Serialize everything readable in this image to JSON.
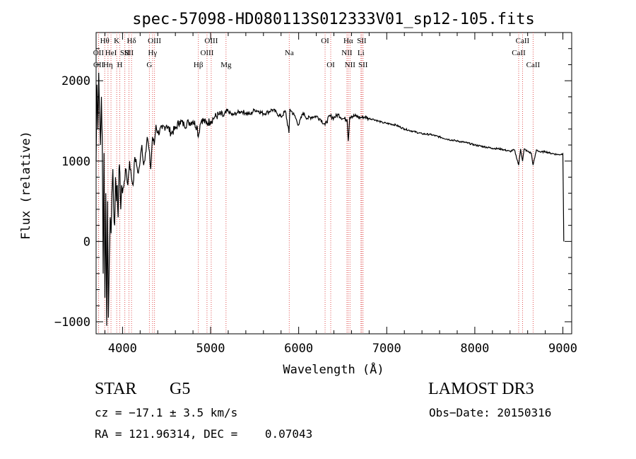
{
  "chart_data": {
    "type": "line",
    "title": "spec-57098-HD080113S012333V01_sp12-105.fits",
    "xlabel": "Wavelength (Å)",
    "ylabel": "Flux (relative)",
    "xlim": [
      3700,
      9100
    ],
    "ylim": [
      -1150,
      2600
    ],
    "xticks": [
      4000,
      5000,
      6000,
      7000,
      8000,
      9000
    ],
    "yticks": [
      -1000,
      0,
      1000,
      2000
    ],
    "grid": false,
    "series": [
      {
        "name": "flux",
        "x": [
          3700,
          3710,
          3720,
          3730,
          3740,
          3750,
          3760,
          3770,
          3780,
          3790,
          3800,
          3810,
          3820,
          3830,
          3840,
          3850,
          3860,
          3870,
          3880,
          3890,
          3900,
          3910,
          3920,
          3930,
          3940,
          3950,
          3960,
          3970,
          3980,
          3990,
          4000,
          4020,
          4040,
          4060,
          4080,
          4100,
          4120,
          4140,
          4160,
          4180,
          4200,
          4220,
          4240,
          4260,
          4280,
          4300,
          4320,
          4340,
          4360,
          4380,
          4400,
          4450,
          4500,
          4550,
          4600,
          4650,
          4700,
          4750,
          4800,
          4850,
          4860,
          4880,
          4900,
          4950,
          5000,
          5050,
          5100,
          5150,
          5200,
          5250,
          5300,
          5350,
          5400,
          5450,
          5500,
          5550,
          5600,
          5650,
          5700,
          5750,
          5800,
          5850,
          5890,
          5900,
          5950,
          6000,
          6050,
          6100,
          6150,
          6200,
          6250,
          6300,
          6350,
          6400,
          6450,
          6500,
          6550,
          6563,
          6580,
          6600,
          6650,
          6700,
          6750,
          6800,
          6850,
          6900,
          6950,
          7000,
          7100,
          7200,
          7300,
          7400,
          7500,
          7600,
          7700,
          7800,
          7900,
          8000,
          8100,
          8200,
          8300,
          8400,
          8450,
          8498,
          8520,
          8542,
          8560,
          8600,
          8640,
          8662,
          8700,
          8750,
          8800,
          8850,
          8900,
          8950,
          9000,
          9010
        ],
        "values": [
          1000,
          1950,
          1400,
          2100,
          1600,
          1200,
          1800,
          1300,
          -400,
          1100,
          -700,
          600,
          -1050,
          500,
          -950,
          -200,
          300,
          100,
          600,
          900,
          400,
          200,
          800,
          500,
          700,
          300,
          900,
          850,
          400,
          700,
          600,
          750,
          900,
          700,
          1000,
          800,
          700,
          1050,
          950,
          850,
          1000,
          1200,
          950,
          1100,
          1300,
          1150,
          900,
          1300,
          1200,
          1450,
          1350,
          1400,
          1450,
          1350,
          1400,
          1500,
          1450,
          1480,
          1500,
          1420,
          1300,
          1450,
          1520,
          1470,
          1500,
          1550,
          1580,
          1560,
          1620,
          1570,
          1600,
          1620,
          1600,
          1580,
          1640,
          1620,
          1590,
          1610,
          1640,
          1600,
          1550,
          1620,
          1350,
          1650,
          1570,
          1450,
          1600,
          1530,
          1550,
          1560,
          1520,
          1450,
          1560,
          1540,
          1580,
          1530,
          1520,
          1250,
          1550,
          1560,
          1560,
          1540,
          1550,
          1530,
          1520,
          1500,
          1480,
          1470,
          1450,
          1400,
          1370,
          1340,
          1330,
          1300,
          1270,
          1250,
          1230,
          1200,
          1180,
          1160,
          1150,
          1120,
          1140,
          950,
          1150,
          1000,
          1150,
          1120,
          1100,
          950,
          1140,
          1110,
          1120,
          1100,
          1090,
          1080,
          1090,
          0
        ]
      }
    ],
    "lines": [
      {
        "w": 3727,
        "label": "OII",
        "row": 1
      },
      {
        "w": 3729,
        "label": "OII",
        "row": 2
      },
      {
        "w": 3798,
        "label": "Hθ",
        "row": 0
      },
      {
        "w": 3835,
        "label": "Hη",
        "row": 2
      },
      {
        "w": 3869,
        "label": "HeI",
        "row": 1
      },
      {
        "w": 3934,
        "label": "K",
        "row": 0
      },
      {
        "w": 3969,
        "label": "H",
        "row": 2
      },
      {
        "w": 4026,
        "label": "SII",
        "row": 1
      },
      {
        "w": 4073,
        "label": "SII",
        "row": 1
      },
      {
        "w": 4102,
        "label": "Hδ",
        "row": 0
      },
      {
        "w": 4305,
        "label": "G",
        "row": 2
      },
      {
        "w": 4341,
        "label": "Hγ",
        "row": 1
      },
      {
        "w": 4363,
        "label": "OIII",
        "row": 0
      },
      {
        "w": 4861,
        "label": "Hβ",
        "row": 2
      },
      {
        "w": 4959,
        "label": "OIII",
        "row": 1
      },
      {
        "w": 5007,
        "label": "OIII",
        "row": 0
      },
      {
        "w": 5175,
        "label": "Mg",
        "row": 2
      },
      {
        "w": 5893,
        "label": "Na",
        "row": 1
      },
      {
        "w": 6300,
        "label": "OI",
        "row": 0
      },
      {
        "w": 6364,
        "label": "OI",
        "row": 2
      },
      {
        "w": 6548,
        "label": "NII",
        "row": 1
      },
      {
        "w": 6563,
        "label": "Hα",
        "row": 0
      },
      {
        "w": 6583,
        "label": "NII",
        "row": 2
      },
      {
        "w": 6707,
        "label": "Li",
        "row": 1
      },
      {
        "w": 6716,
        "label": "SII",
        "row": 0
      },
      {
        "w": 6731,
        "label": "SII",
        "row": 2
      },
      {
        "w": 8498,
        "label": "CaII",
        "row": 1
      },
      {
        "w": 8542,
        "label": "CaII",
        "row": 0
      },
      {
        "w": 8662,
        "label": "CaII",
        "row": 2
      }
    ],
    "line_color": "#e05050"
  },
  "info": {
    "object_class": "STAR",
    "subclass": "G5",
    "survey": "LAMOST DR3",
    "cz": "cz = −17.1 ± 3.5 km/s",
    "obs_date": "Obs−Date: 20150316",
    "radec": "RA = 121.96314, DEC =    0.07043"
  }
}
